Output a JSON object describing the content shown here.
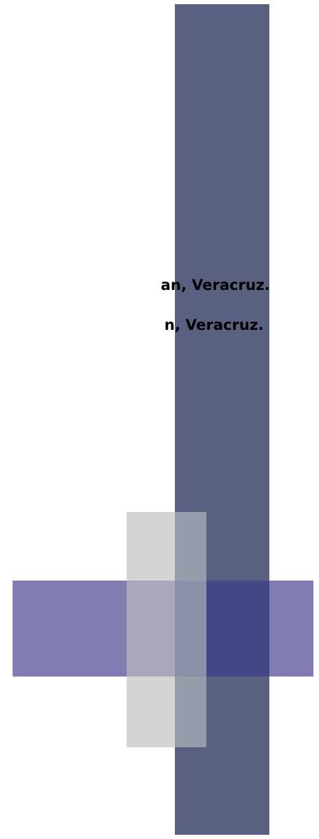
{
  "document": {
    "lines": [
      "an, Veracruz.",
      "n, Veracruz."
    ]
  },
  "colors": {
    "bar": "#5a607f",
    "band": "#817bb4",
    "grey_light": "#d4d4d4",
    "grey_over_bar": "#979cab",
    "grey_over_band": "#aaa7bd",
    "grey_over_both": "#8e8faa",
    "cross": "#454886"
  }
}
